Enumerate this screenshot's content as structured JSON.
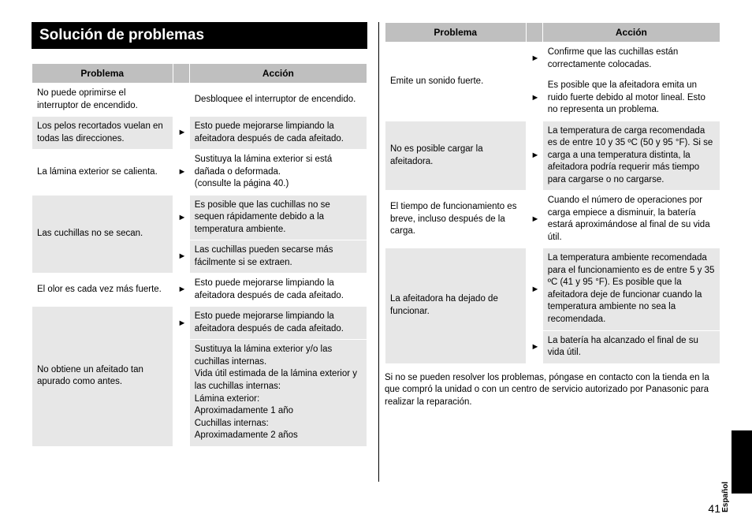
{
  "heading": "Solución de problemas",
  "col_problema": "Problema",
  "col_accion": "Acción",
  "left_rows": [
    {
      "problema": "No puede oprimirse el interruptor de encendido.",
      "shade": false,
      "acciones": [
        "Desbloquee el interruptor de encendido."
      ],
      "arrows": [
        false
      ]
    },
    {
      "problema": "Los pelos recortados vuelan en todas las direcciones.",
      "shade": true,
      "acciones": [
        "Esto puede mejorarse limpiando la afeitadora después de cada afeitado."
      ],
      "arrows": [
        true
      ]
    },
    {
      "problema": "La lámina exterior se calienta.",
      "shade": false,
      "acciones": [
        "Sustituya la lámina exterior si está dañada o deformada.\n(consulte la página 40.)"
      ],
      "arrows": [
        true
      ]
    },
    {
      "problema": "Las cuchillas no se secan.",
      "shade": true,
      "acciones": [
        "Es posible que las cuchillas no se sequen rápidamente debido a la temperatura ambiente.",
        "Las cuchillas pueden secarse más fácilmente si se extraen."
      ],
      "arrows": [
        true,
        true
      ]
    },
    {
      "problema": "El olor es cada vez más fuerte.",
      "shade": false,
      "acciones": [
        "Esto puede mejorarse limpiando la afeitadora después de cada afeitado."
      ],
      "arrows": [
        true
      ]
    },
    {
      "problema": "No obtiene un afeitado tan apurado como antes.",
      "shade": true,
      "acciones": [
        "Esto puede mejorarse limpiando la afeitadora después de cada afeitado.",
        "Sustituya la lámina exterior y/o las cuchillas internas.\nVida útil estimada de la lámina exterior y las cuchillas internas:\nLámina exterior:\n  Aproximadamente 1 año\nCuchillas internas:\n  Aproximadamente 2 años"
      ],
      "arrows": [
        true,
        false
      ]
    }
  ],
  "right_rows": [
    {
      "problema": "Emite un sonido fuerte.",
      "shade": false,
      "acciones": [
        "Confirme que las cuchillas están correctamente colocadas.",
        "Es posible que la afeitadora emita un ruido fuerte debido al motor lineal. Esto no representa un problema."
      ],
      "arrows": [
        true,
        true
      ]
    },
    {
      "problema": "No es posible cargar la afeitadora.",
      "shade": true,
      "acciones": [
        "La temperatura de carga recomendada es de entre 10 y 35 ºC (50 y 95 °F). Si se carga a una temperatura distinta, la afeitadora podría requerir más tiempo para cargarse o no cargarse."
      ],
      "arrows": [
        true
      ]
    },
    {
      "problema": "El tiempo de funcionamiento es breve, incluso después de la carga.",
      "shade": false,
      "acciones": [
        "Cuando el número de operaciones por carga empiece a disminuir, la batería estará aproximándose al final de su vida útil."
      ],
      "arrows": [
        true
      ]
    },
    {
      "problema": "La afeitadora ha dejado de funcionar.",
      "shade": true,
      "acciones": [
        "La temperatura ambiente recomendada para el funcionamiento es de entre 5 y 35 ºC (41 y 95 °F). Es posible que la afeitadora deje de funcionar cuando la temperatura ambiente no sea la recomendada.",
        "La batería ha alcanzado el final de su vida útil."
      ],
      "arrows": [
        true,
        true
      ]
    }
  ],
  "foot_note": "Si no se pueden resolver los problemas, póngase en contacto con la tienda en la que compró la unidad o con un centro de servicio autorizado por Panasonic para realizar la reparación.",
  "page_number": "41",
  "language_label": "Español",
  "arrow_glyph": "►",
  "colors": {
    "heading_bg": "#000000",
    "heading_fg": "#ffffff",
    "th_bg": "#bfbfbf",
    "shade_bg": "#e7e7e7",
    "border": "#ffffff"
  }
}
